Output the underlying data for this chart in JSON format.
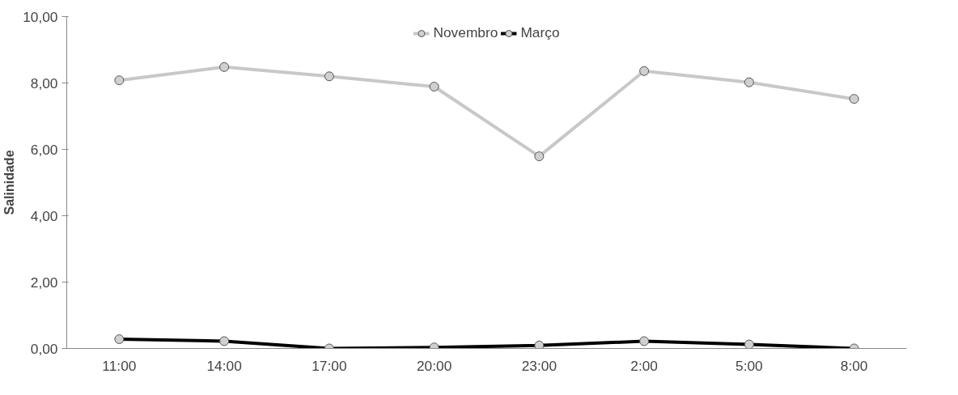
{
  "chart_data": {
    "type": "line",
    "ylabel": "Salinidade",
    "categories": [
      "11:00",
      "14:00",
      "17:00",
      "20:00",
      "23:00",
      "2:00",
      "5:00",
      "8:00"
    ],
    "series": [
      {
        "name": "Novembro",
        "color": "#c8c8c8",
        "values": [
          8.08,
          8.48,
          8.2,
          7.89,
          5.79,
          8.36,
          8.02,
          7.52
        ]
      },
      {
        "name": "Março",
        "color": "#000000",
        "values": [
          0.28,
          0.22,
          0.0,
          0.03,
          0.09,
          0.22,
          0.12,
          0.0
        ]
      }
    ],
    "ylim": [
      0,
      10
    ],
    "yticks": [
      {
        "value": 0,
        "label": "0,00"
      },
      {
        "value": 2,
        "label": "2,00"
      },
      {
        "value": 4,
        "label": "4,00"
      },
      {
        "value": 6,
        "label": "6,00"
      },
      {
        "value": 8,
        "label": "8,00"
      },
      {
        "value": 10,
        "label": "10,00"
      }
    ],
    "grid": false,
    "legend": "top",
    "marker": "circle",
    "line_style": "solid"
  }
}
